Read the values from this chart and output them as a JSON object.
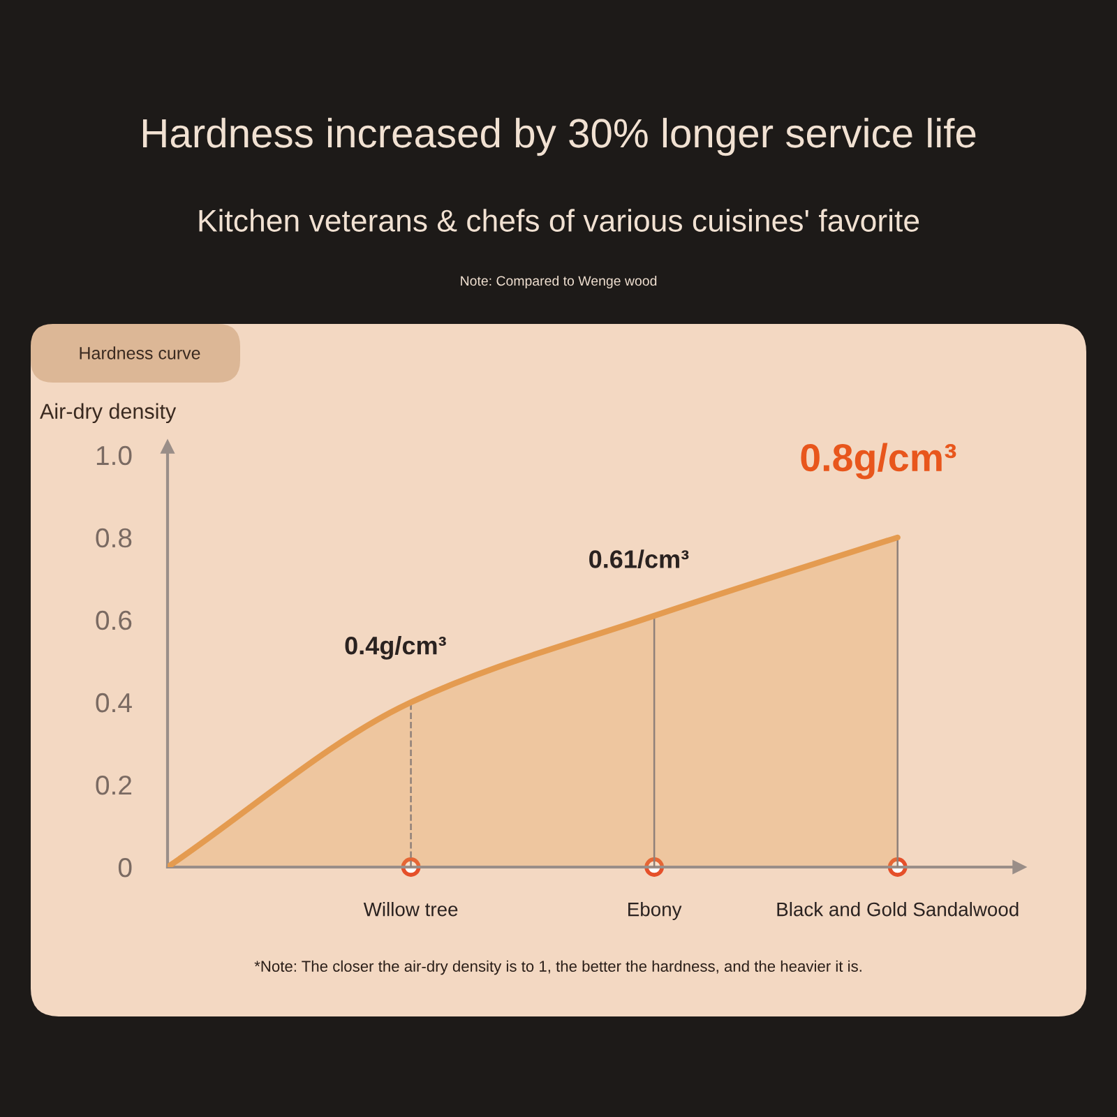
{
  "chart_data": {
    "type": "area",
    "title": "Hardness increased by 30% longer service life",
    "subtitle": "Kitchen veterans & chefs of various cuisines' favorite",
    "ylabel": "Air-dry density",
    "categories": [
      null,
      "Willow tree",
      "Ebony",
      "Black and Gold Sandalwood"
    ],
    "series": [
      {
        "color": "#e49b50",
        "values": [
          0,
          0.4,
          0.61,
          0.8
        ],
        "value_labels": [
          null,
          "0.4g/cm³",
          "0.61/cm³",
          "0.8g/cm³"
        ]
      }
    ],
    "ylim": [
      0,
      1.02
    ],
    "yticks": [
      0,
      0.2,
      0.4,
      0.6,
      0.8,
      {
        "value": 1,
        "label": "1.0"
      }
    ],
    "ref_lines": [
      {
        "axis": "x",
        "value": "Willow tree",
        "color": "#8f8079",
        "line_style": "dashed"
      },
      {
        "axis": "x",
        "value": "Ebony",
        "color": "#8f8079"
      },
      {
        "axis": "x",
        "value": "Black and Gold Sandalwood",
        "color": "#8f8079"
      }
    ],
    "annotations": [
      "Note: Compared to Wenge wood",
      "Hardness curve",
      "*Note: The closer the air-dry density is to 1, the better the hardness, and the heavier it is."
    ]
  }
}
